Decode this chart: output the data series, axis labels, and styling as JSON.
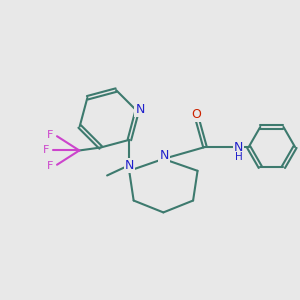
{
  "bg_color": "#e8e8e8",
  "bond_color": "#3d7a6e",
  "N_color": "#2020cc",
  "O_color": "#cc2200",
  "F_color": "#cc44cc",
  "line_width": 1.5,
  "dbo": 0.06,
  "figsize": [
    3.0,
    3.0
  ],
  "dpi": 100,
  "xlim": [
    0.0,
    10.0
  ],
  "ylim": [
    2.0,
    9.5
  ]
}
